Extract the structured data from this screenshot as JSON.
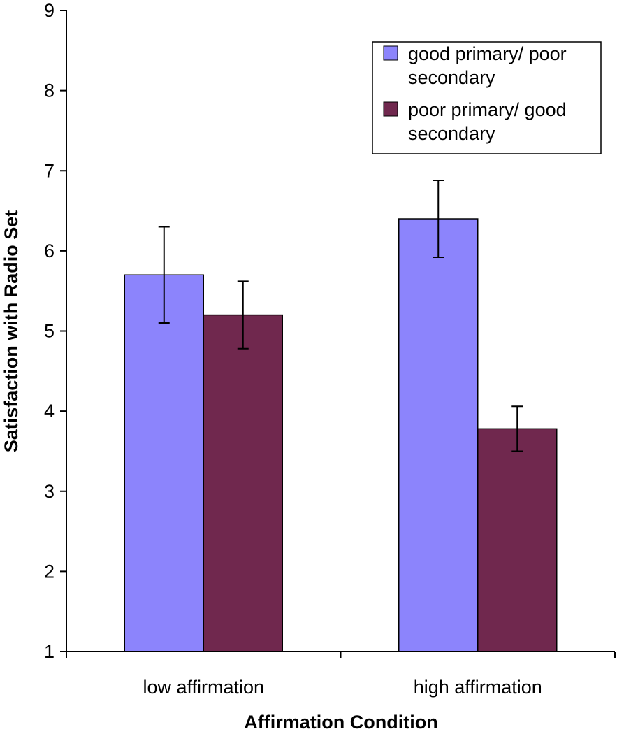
{
  "chart_data": {
    "type": "bar",
    "title": "",
    "xlabel": "Affirmation Condition",
    "ylabel": "Satisfaction with Radio Set",
    "ylim": [
      1,
      9
    ],
    "yticks": [
      "1",
      "2",
      "3",
      "4",
      "5",
      "6",
      "7",
      "8",
      "9"
    ],
    "categories": [
      "low affirmation",
      "high affirmation"
    ],
    "series": [
      {
        "name": "good primary/ poor secondary",
        "legend_lines": [
          "good primary/ poor",
          "secondary"
        ],
        "color": "#8C84FC",
        "values": [
          5.7,
          6.4
        ],
        "errors": [
          0.6,
          0.48
        ]
      },
      {
        "name": "poor primary/ good secondary",
        "legend_lines": [
          "poor primary/ good",
          "secondary"
        ],
        "color": "#70284E",
        "values": [
          5.2,
          3.78
        ],
        "errors": [
          0.42,
          0.28
        ]
      }
    ],
    "legend_position": "top-right",
    "grid": false
  }
}
